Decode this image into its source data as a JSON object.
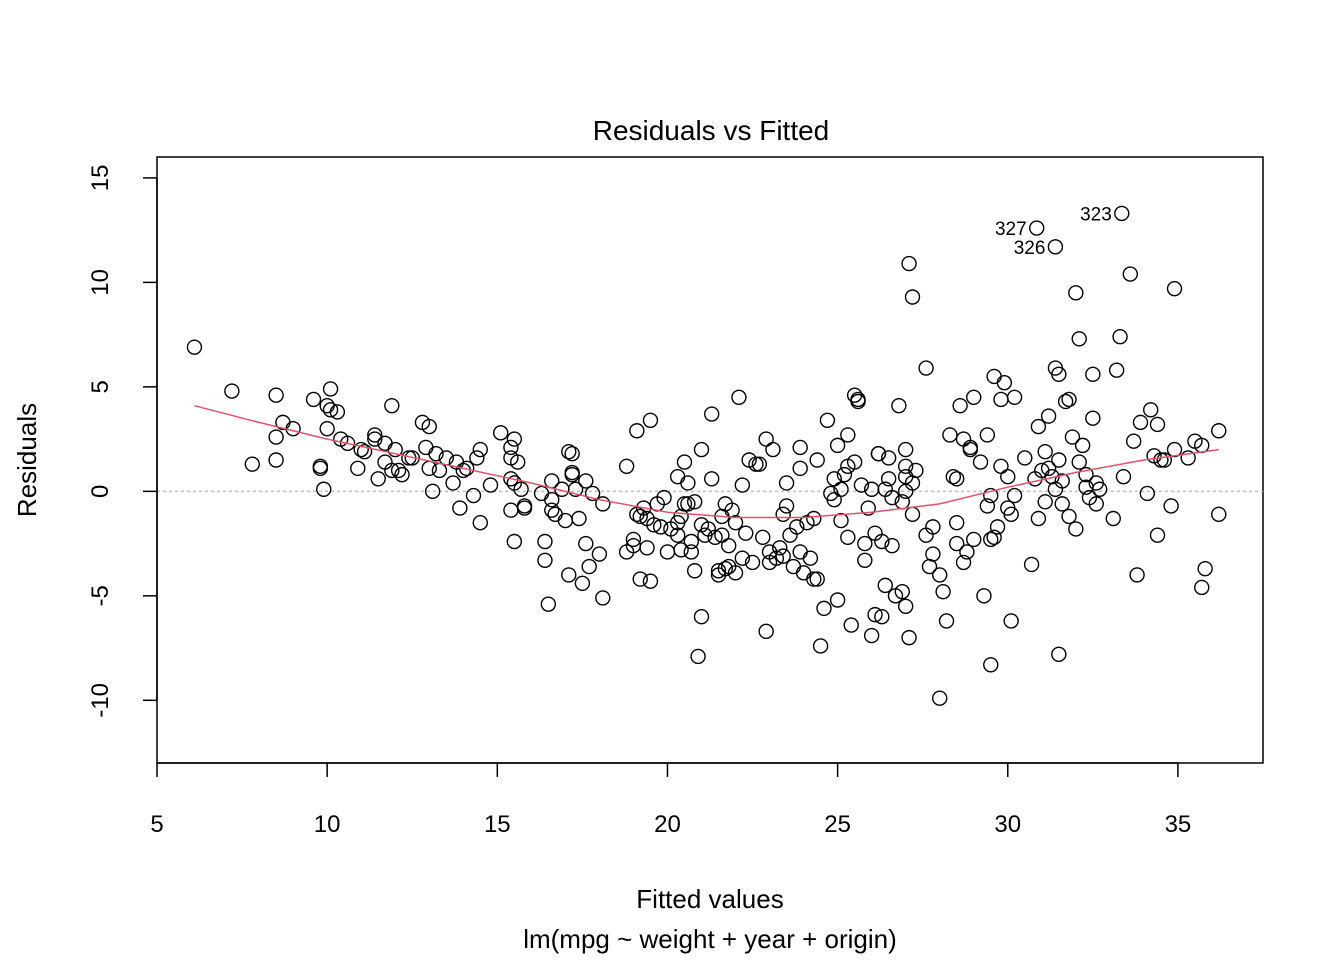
{
  "chart_data": {
    "type": "scatter",
    "title": "Residuals vs Fitted",
    "xlabel": "Fitted values",
    "sublabel": "lm(mpg ~ weight + year + origin)",
    "ylabel": "Residuals",
    "xlim": [
      5,
      37.5
    ],
    "ylim": [
      -13,
      16
    ],
    "xticks": [
      5,
      10,
      15,
      20,
      25,
      30,
      35
    ],
    "xtick_labels": [
      "5",
      "10",
      "15",
      "20",
      "25",
      "30",
      "35"
    ],
    "yticks": [
      -10,
      -5,
      0,
      5,
      10,
      15
    ],
    "ytick_labels": [
      "-10",
      "-5",
      "0",
      "5",
      "10",
      "15"
    ],
    "reference_line_y": 0,
    "colors": {
      "points": "#000000",
      "smooth": "#df536b",
      "reference": "#bebebe"
    },
    "smooth": [
      [
        6.1,
        4.1
      ],
      [
        8,
        3.3
      ],
      [
        10,
        2.5
      ],
      [
        12,
        1.8
      ],
      [
        14,
        1.1
      ],
      [
        16,
        0.4
      ],
      [
        18,
        -0.4
      ],
      [
        20,
        -1.0
      ],
      [
        22,
        -1.25
      ],
      [
        24,
        -1.25
      ],
      [
        26,
        -1.0
      ],
      [
        28,
        -0.6
      ],
      [
        30,
        0.2
      ],
      [
        32,
        0.9
      ],
      [
        34,
        1.5
      ],
      [
        36.2,
        2.0
      ]
    ],
    "labeled_points": [
      {
        "label": "327",
        "x": 30.85,
        "y": 12.6
      },
      {
        "label": "326",
        "x": 31.4,
        "y": 11.7
      },
      {
        "label": "323",
        "x": 33.35,
        "y": 13.3
      }
    ],
    "points": [
      [
        6.1,
        6.9
      ],
      [
        7.2,
        4.8
      ],
      [
        7.8,
        1.3
      ],
      [
        8.5,
        4.6
      ],
      [
        8.5,
        2.6
      ],
      [
        8.5,
        1.5
      ],
      [
        8.7,
        3.3
      ],
      [
        9.0,
        3.0
      ],
      [
        9.6,
        4.4
      ],
      [
        9.8,
        1.2
      ],
      [
        9.8,
        1.1
      ],
      [
        9.9,
        0.1
      ],
      [
        10.0,
        4.1
      ],
      [
        10.0,
        3.0
      ],
      [
        10.1,
        4.9
      ],
      [
        10.1,
        3.9
      ],
      [
        10.3,
        3.8
      ],
      [
        10.4,
        2.5
      ],
      [
        10.6,
        2.3
      ],
      [
        10.9,
        1.1
      ],
      [
        11.0,
        2.0
      ],
      [
        11.1,
        1.9
      ],
      [
        11.4,
        2.7
      ],
      [
        11.4,
        2.5
      ],
      [
        11.5,
        0.6
      ],
      [
        11.7,
        2.3
      ],
      [
        11.7,
        1.4
      ],
      [
        11.9,
        4.1
      ],
      [
        11.9,
        1.0
      ],
      [
        12.0,
        2.0
      ],
      [
        12.1,
        1.0
      ],
      [
        12.2,
        0.8
      ],
      [
        12.4,
        1.6
      ],
      [
        12.5,
        1.6
      ],
      [
        12.8,
        3.3
      ],
      [
        12.9,
        2.1
      ],
      [
        13.0,
        3.1
      ],
      [
        13.0,
        1.1
      ],
      [
        13.1,
        0.0
      ],
      [
        13.2,
        1.8
      ],
      [
        13.3,
        1.0
      ],
      [
        13.5,
        1.6
      ],
      [
        13.7,
        0.4
      ],
      [
        13.8,
        1.4
      ],
      [
        13.9,
        -0.8
      ],
      [
        14.0,
        1.0
      ],
      [
        14.1,
        1.1
      ],
      [
        14.3,
        -0.2
      ],
      [
        14.4,
        1.6
      ],
      [
        14.5,
        2.0
      ],
      [
        14.5,
        -1.5
      ],
      [
        14.8,
        0.3
      ],
      [
        15.1,
        2.8
      ],
      [
        15.4,
        0.6
      ],
      [
        15.4,
        2.1
      ],
      [
        15.4,
        1.6
      ],
      [
        15.4,
        -0.9
      ],
      [
        15.5,
        2.5
      ],
      [
        15.5,
        0.4
      ],
      [
        15.5,
        -2.4
      ],
      [
        15.6,
        1.4
      ],
      [
        15.7,
        0.1
      ],
      [
        15.8,
        -0.7
      ],
      [
        15.8,
        -0.8
      ],
      [
        16.3,
        -0.1
      ],
      [
        16.4,
        -2.4
      ],
      [
        16.4,
        -3.3
      ],
      [
        16.5,
        -5.4
      ],
      [
        16.6,
        0.5
      ],
      [
        16.6,
        -0.9
      ],
      [
        16.6,
        -0.4
      ],
      [
        16.7,
        -1.1
      ],
      [
        16.9,
        0.1
      ],
      [
        17.0,
        -1.4
      ],
      [
        17.1,
        1.9
      ],
      [
        17.1,
        -4.0
      ],
      [
        17.2,
        0.9
      ],
      [
        17.2,
        1.8
      ],
      [
        17.2,
        0.8
      ],
      [
        17.3,
        0.1
      ],
      [
        17.4,
        -1.3
      ],
      [
        17.5,
        -4.4
      ],
      [
        17.6,
        0.5
      ],
      [
        17.6,
        -2.5
      ],
      [
        17.7,
        -3.6
      ],
      [
        17.8,
        -0.1
      ],
      [
        18.0,
        -3.0
      ],
      [
        18.1,
        -5.1
      ],
      [
        18.1,
        -0.6
      ],
      [
        18.8,
        -2.9
      ],
      [
        18.8,
        1.2
      ],
      [
        19.0,
        -2.3
      ],
      [
        19.0,
        -2.6
      ],
      [
        19.1,
        -1.1
      ],
      [
        19.1,
        2.9
      ],
      [
        19.2,
        -4.2
      ],
      [
        19.2,
        -1.2
      ],
      [
        19.3,
        -0.8
      ],
      [
        19.4,
        -2.7
      ],
      [
        19.4,
        -1.3
      ],
      [
        19.5,
        -4.3
      ],
      [
        19.5,
        3.4
      ],
      [
        19.6,
        -1.6
      ],
      [
        19.7,
        -0.6
      ],
      [
        19.8,
        -1.7
      ],
      [
        19.9,
        -0.3
      ],
      [
        20.0,
        -2.9
      ],
      [
        20.1,
        -1.8
      ],
      [
        20.3,
        -1.5
      ],
      [
        20.3,
        0.7
      ],
      [
        20.3,
        -2.1
      ],
      [
        20.4,
        -2.8
      ],
      [
        20.4,
        -1.2
      ],
      [
        20.5,
        1.4
      ],
      [
        20.5,
        -0.6
      ],
      [
        20.6,
        -0.6
      ],
      [
        20.6,
        0.4
      ],
      [
        20.7,
        -2.9
      ],
      [
        20.7,
        -2.4
      ],
      [
        20.8,
        -0.5
      ],
      [
        20.8,
        -3.8
      ],
      [
        20.9,
        -7.9
      ],
      [
        21.0,
        -6.0
      ],
      [
        21.0,
        -1.6
      ],
      [
        21.0,
        2.0
      ],
      [
        21.1,
        -2.1
      ],
      [
        21.2,
        -1.8
      ],
      [
        21.3,
        0.6
      ],
      [
        21.3,
        3.7
      ],
      [
        21.4,
        -2.2
      ],
      [
        21.5,
        -3.8
      ],
      [
        21.5,
        -4.0
      ],
      [
        21.6,
        -2.1
      ],
      [
        21.6,
        -1.2
      ],
      [
        21.7,
        -0.6
      ],
      [
        21.7,
        -3.7
      ],
      [
        21.8,
        -3.6
      ],
      [
        21.8,
        -2.6
      ],
      [
        21.9,
        -0.9
      ],
      [
        22.0,
        -1.5
      ],
      [
        22.0,
        -3.9
      ],
      [
        22.1,
        4.5
      ],
      [
        22.2,
        0.3
      ],
      [
        22.2,
        -3.2
      ],
      [
        22.3,
        -2.0
      ],
      [
        22.4,
        1.5
      ],
      [
        22.5,
        -3.4
      ],
      [
        22.6,
        1.3
      ],
      [
        22.7,
        1.3
      ],
      [
        22.8,
        -2.2
      ],
      [
        22.9,
        -6.7
      ],
      [
        22.9,
        2.5
      ],
      [
        23.0,
        -3.4
      ],
      [
        23.0,
        -2.9
      ],
      [
        23.1,
        2.0
      ],
      [
        23.2,
        -3.2
      ],
      [
        23.3,
        -2.7
      ],
      [
        23.4,
        -3.1
      ],
      [
        23.4,
        -1.1
      ],
      [
        23.5,
        -0.7
      ],
      [
        23.5,
        0.4
      ],
      [
        23.6,
        -2.1
      ],
      [
        23.7,
        -3.6
      ],
      [
        23.8,
        -1.7
      ],
      [
        23.9,
        -2.9
      ],
      [
        23.9,
        1.1
      ],
      [
        23.9,
        2.1
      ],
      [
        24.0,
        -3.9
      ],
      [
        24.1,
        -1.5
      ],
      [
        24.2,
        -3.2
      ],
      [
        24.3,
        -4.2
      ],
      [
        24.3,
        -1.3
      ],
      [
        24.4,
        1.5
      ],
      [
        24.4,
        -4.2
      ],
      [
        24.5,
        -7.4
      ],
      [
        24.6,
        -5.6
      ],
      [
        24.7,
        3.4
      ],
      [
        24.8,
        -0.1
      ],
      [
        24.9,
        0.6
      ],
      [
        24.9,
        -0.4
      ],
      [
        25.0,
        2.2
      ],
      [
        25.0,
        -5.2
      ],
      [
        25.1,
        0.1
      ],
      [
        25.1,
        -1.4
      ],
      [
        25.2,
        0.8
      ],
      [
        25.3,
        2.7
      ],
      [
        25.3,
        1.2
      ],
      [
        25.3,
        -2.2
      ],
      [
        25.4,
        -6.4
      ],
      [
        25.5,
        4.6
      ],
      [
        25.5,
        1.4
      ],
      [
        25.6,
        4.4
      ],
      [
        25.6,
        4.3
      ],
      [
        25.7,
        0.3
      ],
      [
        25.8,
        -2.5
      ],
      [
        25.8,
        -3.3
      ],
      [
        25.9,
        -0.8
      ],
      [
        26.0,
        0.1
      ],
      [
        26.0,
        -6.9
      ],
      [
        26.1,
        -2.0
      ],
      [
        26.1,
        -5.9
      ],
      [
        26.2,
        1.8
      ],
      [
        26.2,
        1.8
      ],
      [
        26.3,
        -2.4
      ],
      [
        26.3,
        -6.0
      ],
      [
        26.4,
        0.1
      ],
      [
        26.4,
        -4.5
      ],
      [
        26.5,
        0.6
      ],
      [
        26.5,
        1.6
      ],
      [
        26.6,
        -0.3
      ],
      [
        26.6,
        -2.6
      ],
      [
        26.7,
        -5.0
      ],
      [
        26.8,
        4.1
      ],
      [
        26.9,
        -0.5
      ],
      [
        26.9,
        -4.8
      ],
      [
        27.0,
        1.2
      ],
      [
        27.0,
        0.0
      ],
      [
        27.0,
        2.0
      ],
      [
        27.0,
        -5.5
      ],
      [
        27.0,
        0.7
      ],
      [
        27.1,
        -7.0
      ],
      [
        27.1,
        10.9
      ],
      [
        27.2,
        9.3
      ],
      [
        27.2,
        0.4
      ],
      [
        27.2,
        -1.1
      ],
      [
        27.3,
        1.0
      ],
      [
        27.6,
        5.9
      ],
      [
        27.6,
        -2.1
      ],
      [
        27.7,
        -3.6
      ],
      [
        27.8,
        -1.7
      ],
      [
        27.8,
        -3.0
      ],
      [
        28.0,
        -9.9
      ],
      [
        28.0,
        -4.0
      ],
      [
        28.1,
        -4.8
      ],
      [
        28.2,
        -6.2
      ],
      [
        28.3,
        2.7
      ],
      [
        28.4,
        0.7
      ],
      [
        28.5,
        0.6
      ],
      [
        28.5,
        -2.5
      ],
      [
        28.5,
        -1.5
      ],
      [
        28.6,
        4.1
      ],
      [
        28.7,
        2.5
      ],
      [
        28.7,
        -3.4
      ],
      [
        28.8,
        -2.9
      ],
      [
        28.9,
        2.0
      ],
      [
        28.9,
        2.1
      ],
      [
        29.0,
        -2.3
      ],
      [
        29.0,
        4.5
      ],
      [
        29.2,
        1.4
      ],
      [
        29.3,
        -5.0
      ],
      [
        29.4,
        -0.7
      ],
      [
        29.4,
        2.7
      ],
      [
        29.5,
        -2.3
      ],
      [
        29.5,
        -8.3
      ],
      [
        29.5,
        -0.2
      ],
      [
        29.6,
        5.5
      ],
      [
        29.6,
        -2.2
      ],
      [
        29.7,
        -1.7
      ],
      [
        29.8,
        4.4
      ],
      [
        29.8,
        1.2
      ],
      [
        29.9,
        5.2
      ],
      [
        30.0,
        -0.8
      ],
      [
        30.0,
        0.7
      ],
      [
        30.1,
        -6.2
      ],
      [
        30.1,
        -1.1
      ],
      [
        30.2,
        4.5
      ],
      [
        30.2,
        -0.2
      ],
      [
        30.5,
        1.6
      ],
      [
        30.7,
        -3.5
      ],
      [
        30.8,
        0.6
      ],
      [
        30.9,
        3.1
      ],
      [
        30.9,
        -1.3
      ],
      [
        31.0,
        1.0
      ],
      [
        31.1,
        1.9
      ],
      [
        31.1,
        -0.5
      ],
      [
        31.2,
        1.1
      ],
      [
        31.2,
        3.6
      ],
      [
        31.3,
        0.7
      ],
      [
        31.4,
        5.9
      ],
      [
        31.4,
        0.1
      ],
      [
        31.5,
        5.6
      ],
      [
        31.5,
        -7.8
      ],
      [
        31.5,
        1.5
      ],
      [
        31.6,
        0.5
      ],
      [
        31.6,
        -0.6
      ],
      [
        31.7,
        4.3
      ],
      [
        31.8,
        -1.2
      ],
      [
        31.8,
        4.4
      ],
      [
        31.9,
        2.6
      ],
      [
        32.0,
        -1.8
      ],
      [
        32.0,
        9.5
      ],
      [
        32.1,
        7.3
      ],
      [
        32.1,
        1.4
      ],
      [
        32.2,
        2.2
      ],
      [
        32.3,
        0.8
      ],
      [
        32.3,
        0.2
      ],
      [
        32.4,
        -0.3
      ],
      [
        32.5,
        5.6
      ],
      [
        32.5,
        3.5
      ],
      [
        32.6,
        -0.6
      ],
      [
        32.6,
        0.4
      ],
      [
        32.7,
        0.1
      ],
      [
        33.1,
        -1.3
      ],
      [
        33.2,
        5.8
      ],
      [
        33.3,
        7.4
      ],
      [
        33.4,
        0.7
      ],
      [
        33.6,
        10.4
      ],
      [
        33.7,
        2.4
      ],
      [
        33.8,
        -4.0
      ],
      [
        33.9,
        3.3
      ],
      [
        34.1,
        -0.1
      ],
      [
        34.2,
        3.9
      ],
      [
        34.3,
        1.7
      ],
      [
        34.4,
        -2.1
      ],
      [
        34.4,
        3.2
      ],
      [
        34.5,
        1.5
      ],
      [
        34.6,
        1.5
      ],
      [
        34.8,
        -0.7
      ],
      [
        34.9,
        9.7
      ],
      [
        34.9,
        2.0
      ],
      [
        35.3,
        1.6
      ],
      [
        35.5,
        2.4
      ],
      [
        35.7,
        2.2
      ],
      [
        35.7,
        -4.6
      ],
      [
        35.8,
        -3.7
      ],
      [
        36.2,
        -1.1
      ],
      [
        36.2,
        2.9
      ]
    ]
  }
}
